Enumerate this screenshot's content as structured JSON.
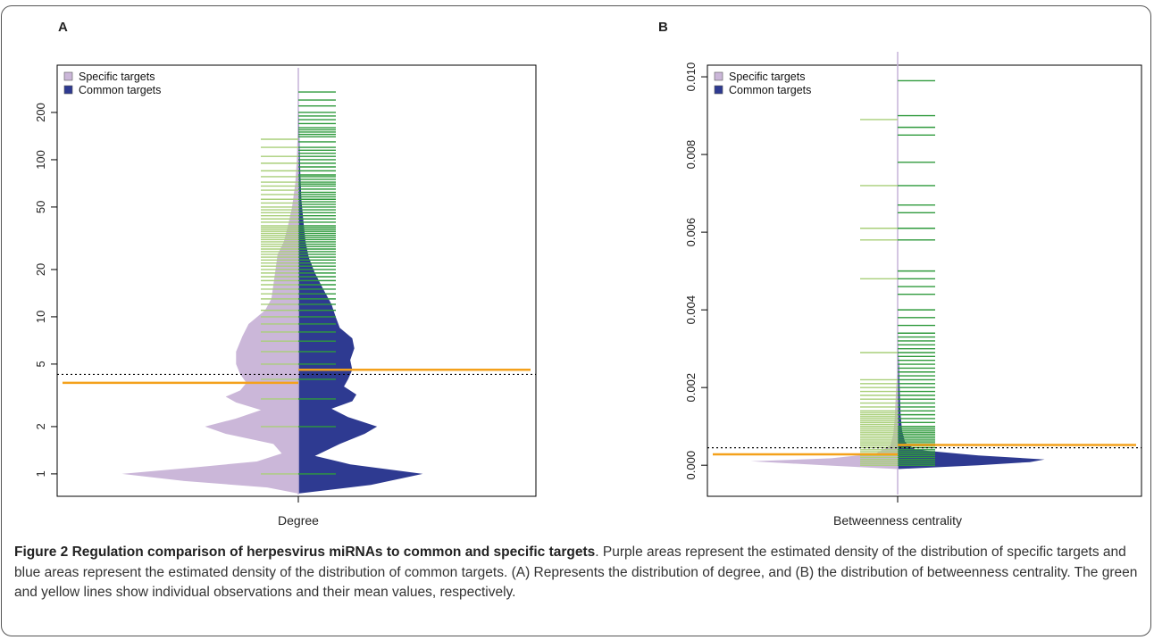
{
  "figure": {
    "panel_a_letter": "A",
    "panel_b_letter": "B",
    "caption_title": "Figure 2 Regulation comparison of herpesvirus miRNAs to common and specific targets",
    "caption_body": ". Purple areas represent the estimated density of the distribution of specific targets and blue areas represent the estimated density of the distribution of common targets. (A) Represents the distribution of degree, and (B) the distribution of betweenness centrality. The green and yellow lines show individual observations and their mean values, respectively."
  },
  "colors": {
    "specific": "#cbb7d9",
    "common": "#2e3a91",
    "obs_specific": "#a9cf7a",
    "obs_common": "#2f9a3c",
    "mean": "#f4a11b",
    "overall_mean": "#000000",
    "center_line": "#c6b4d8"
  },
  "chart_data": [
    {
      "type": "beanplot",
      "panel": "A",
      "xlabel": "Degree",
      "ylabel": "",
      "y_scale": "log",
      "ylim": [
        0.72,
        400
      ],
      "yticks": [
        1,
        2,
        5,
        10,
        20,
        50,
        100,
        200
      ],
      "ytick_labels": [
        "1",
        "2",
        "5",
        "10",
        "20",
        "50",
        "100",
        "200"
      ],
      "legend": {
        "position": "top-left",
        "entries": [
          "Specific targets",
          "Common targets"
        ]
      },
      "overall_mean": 4.3,
      "series": [
        {
          "name": "Specific targets",
          "side": "left",
          "mean": 3.8,
          "observations": [
            1,
            2,
            3,
            4,
            5,
            6,
            7,
            8,
            9,
            10,
            11,
            12,
            13,
            14,
            15,
            16,
            17,
            18,
            19,
            20,
            21,
            22,
            23,
            24,
            25,
            26,
            27,
            28,
            29,
            30,
            31,
            32,
            33,
            34,
            35,
            36,
            37,
            38,
            40,
            42,
            44,
            46,
            48,
            50,
            53,
            56,
            60,
            64,
            68,
            72,
            78,
            85,
            95,
            105,
            120,
            135
          ],
          "density": [
            [
              0.75,
              0.0
            ],
            [
              0.82,
              0.15
            ],
            [
              0.9,
              0.55
            ],
            [
              1.0,
              0.85
            ],
            [
              1.1,
              0.5
            ],
            [
              1.2,
              0.2
            ],
            [
              1.35,
              0.08
            ],
            [
              1.55,
              0.12
            ],
            [
              1.8,
              0.35
            ],
            [
              2.0,
              0.45
            ],
            [
              2.25,
              0.3
            ],
            [
              2.55,
              0.18
            ],
            [
              2.85,
              0.3
            ],
            [
              3.1,
              0.35
            ],
            [
              3.4,
              0.28
            ],
            [
              3.8,
              0.25
            ],
            [
              4.3,
              0.28
            ],
            [
              5.0,
              0.3
            ],
            [
              6.0,
              0.3
            ],
            [
              7.5,
              0.27
            ],
            [
              9.0,
              0.24
            ],
            [
              11.0,
              0.16
            ],
            [
              13.0,
              0.13
            ],
            [
              16.0,
              0.12
            ],
            [
              20.0,
              0.11
            ],
            [
              25.0,
              0.1
            ],
            [
              30.0,
              0.07
            ],
            [
              38.0,
              0.05
            ],
            [
              50.0,
              0.03
            ],
            [
              70.0,
              0.015
            ],
            [
              100.0,
              0.007
            ],
            [
              150.0,
              0.003
            ],
            [
              230.0,
              0.0
            ]
          ]
        },
        {
          "name": "Common targets",
          "side": "right",
          "mean": 4.6,
          "observations": [
            1,
            2,
            3,
            4,
            5,
            6,
            7,
            8,
            9,
            10,
            11,
            12,
            13,
            14,
            15,
            16,
            17,
            18,
            19,
            20,
            21,
            22,
            23,
            24,
            25,
            26,
            27,
            28,
            29,
            30,
            31,
            32,
            33,
            34,
            35,
            36,
            37,
            38,
            40,
            42,
            44,
            46,
            48,
            50,
            52,
            54,
            56,
            58,
            60,
            62,
            65,
            68,
            70,
            72,
            75,
            78,
            80,
            85,
            90,
            95,
            100,
            105,
            110,
            115,
            120,
            130,
            140,
            145,
            150,
            155,
            160,
            170,
            180,
            190,
            200,
            220,
            240,
            270
          ],
          "density": [
            [
              0.75,
              0.0
            ],
            [
              0.85,
              0.35
            ],
            [
              1.0,
              0.6
            ],
            [
              1.15,
              0.25
            ],
            [
              1.3,
              0.08
            ],
            [
              1.55,
              0.2
            ],
            [
              1.8,
              0.32
            ],
            [
              2.0,
              0.38
            ],
            [
              2.3,
              0.24
            ],
            [
              2.6,
              0.16
            ],
            [
              2.9,
              0.26
            ],
            [
              3.2,
              0.28
            ],
            [
              3.6,
              0.22
            ],
            [
              4.0,
              0.24
            ],
            [
              4.6,
              0.26
            ],
            [
              5.3,
              0.25
            ],
            [
              6.3,
              0.27
            ],
            [
              7.3,
              0.26
            ],
            [
              8.5,
              0.2
            ],
            [
              10.0,
              0.18
            ],
            [
              12.0,
              0.16
            ],
            [
              15.0,
              0.12
            ],
            [
              19.0,
              0.08
            ],
            [
              24.0,
              0.05
            ],
            [
              30.0,
              0.035
            ],
            [
              40.0,
              0.025
            ],
            [
              55.0,
              0.015
            ],
            [
              80.0,
              0.01
            ],
            [
              120.0,
              0.006
            ],
            [
              180.0,
              0.004
            ],
            [
              260.0,
              0.0
            ]
          ]
        }
      ]
    },
    {
      "type": "beanplot",
      "panel": "B",
      "xlabel": "Betweenness centrality",
      "ylabel": "",
      "y_scale": "linear",
      "ylim": [
        -0.0008,
        0.0103
      ],
      "yticks": [
        0.0,
        0.002,
        0.004,
        0.006,
        0.008,
        0.01
      ],
      "ytick_labels": [
        "0.000",
        "0.002",
        "0.004",
        "0.006",
        "0.008",
        "0.010"
      ],
      "legend": {
        "position": "top-left",
        "entries": [
          "Specific targets",
          "Common targets"
        ]
      },
      "overall_mean": 0.00045,
      "series": [
        {
          "name": "Specific targets",
          "side": "left",
          "mean": 0.00028,
          "observations": [
            0.0,
            5e-05,
            0.0001,
            0.00015,
            0.0002,
            0.00025,
            0.0003,
            0.00035,
            0.0004,
            0.00045,
            0.0005,
            0.00055,
            0.0006,
            0.00065,
            0.0007,
            0.00075,
            0.0008,
            0.00085,
            0.0009,
            0.00095,
            0.001,
            0.00105,
            0.0011,
            0.00115,
            0.0012,
            0.00125,
            0.0013,
            0.00135,
            0.0014,
            0.0015,
            0.0016,
            0.0017,
            0.0018,
            0.0019,
            0.002,
            0.0021,
            0.0022,
            0.0029,
            0.0048,
            0.0058,
            0.0061,
            0.0072,
            0.0089
          ],
          "density": [
            [
              -0.0001,
              0.0
            ],
            [
              0.0,
              0.5
            ],
            [
              0.0001,
              1.0
            ],
            [
              0.00018,
              0.45
            ],
            [
              0.0003,
              0.15
            ],
            [
              0.0005,
              0.05
            ],
            [
              0.0008,
              0.03
            ],
            [
              0.0012,
              0.02
            ],
            [
              0.0016,
              0.015
            ],
            [
              0.002,
              0.01
            ],
            [
              0.0025,
              0.0
            ]
          ]
        },
        {
          "name": "Common targets",
          "side": "right",
          "mean": 0.00052,
          "observations": [
            0.0,
            5e-05,
            0.0001,
            0.00015,
            0.0002,
            0.00025,
            0.0003,
            0.00035,
            0.0004,
            0.00045,
            0.0005,
            0.00055,
            0.0006,
            0.00065,
            0.0007,
            0.00075,
            0.0008,
            0.00085,
            0.0009,
            0.00095,
            0.001,
            0.0011,
            0.0012,
            0.0013,
            0.0014,
            0.0015,
            0.0016,
            0.0017,
            0.0018,
            0.0019,
            0.002,
            0.0021,
            0.0022,
            0.0023,
            0.0024,
            0.0025,
            0.0026,
            0.0027,
            0.0028,
            0.0029,
            0.003,
            0.0031,
            0.0032,
            0.0033,
            0.0034,
            0.0036,
            0.0038,
            0.004,
            0.0044,
            0.0046,
            0.0048,
            0.005,
            0.0058,
            0.0061,
            0.0065,
            0.0067,
            0.0072,
            0.0078,
            0.0085,
            0.0087,
            0.009,
            0.0099
          ],
          "density": [
            [
              -0.0001,
              0.0
            ],
            [
              0.0,
              0.55
            ],
            [
              8e-05,
              0.9
            ],
            [
              0.00015,
              1.0
            ],
            [
              0.00025,
              0.55
            ],
            [
              0.0004,
              0.12
            ],
            [
              0.0006,
              0.05
            ],
            [
              0.0009,
              0.03
            ],
            [
              0.0013,
              0.02
            ],
            [
              0.0018,
              0.015
            ],
            [
              0.0025,
              0.01
            ],
            [
              0.0035,
              0.0
            ]
          ]
        }
      ]
    }
  ]
}
